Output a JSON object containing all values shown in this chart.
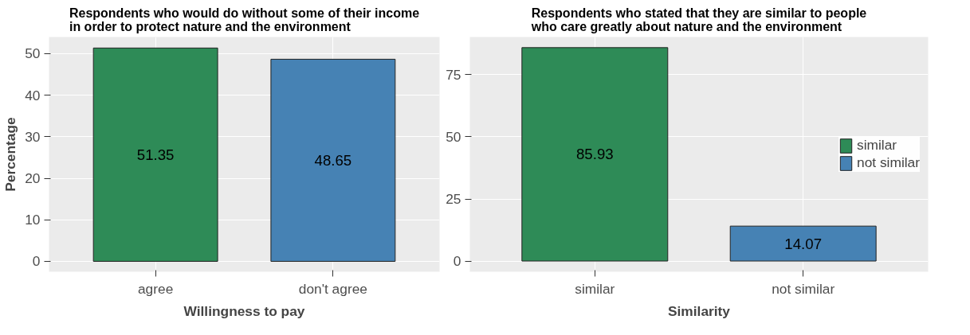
{
  "chart_data": [
    {
      "type": "bar",
      "title": "Respondents who would do without some of their income in order to protect nature and the environment",
      "xlabel": "Willingness to pay",
      "ylabel": "Percentage",
      "categories": [
        "agree",
        "don't agree"
      ],
      "values": [
        51.35,
        48.65
      ],
      "colors": [
        "#2e8b57",
        "#4682b4"
      ],
      "ylim": [
        -2.5,
        54
      ],
      "yticks": [
        0,
        10,
        20,
        30,
        40,
        50
      ],
      "grid": true,
      "data_labels": true
    },
    {
      "type": "bar",
      "title": "Respondents who stated that they are similar to people who care greatly about nature and the environment",
      "xlabel": "Similarity",
      "categories": [
        "similar",
        "not similar"
      ],
      "series": [
        {
          "name": "similar",
          "color": "#2e8b57",
          "values": [
            85.93,
            null
          ]
        },
        {
          "name": "not similar",
          "color": "#4682b4",
          "values": [
            null,
            14.07
          ]
        }
      ],
      "ylim": [
        -4.3,
        90.2
      ],
      "yticks": [
        0,
        25,
        50,
        75
      ],
      "grid": true,
      "data_labels": true,
      "legend": "right"
    }
  ]
}
